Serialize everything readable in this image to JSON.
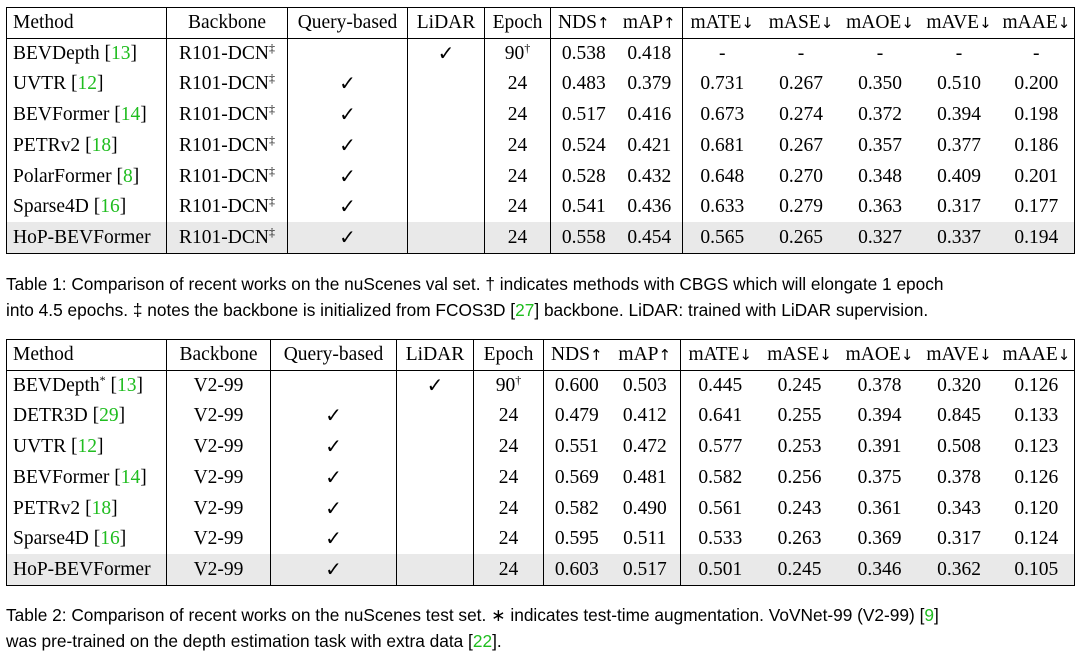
{
  "columns": {
    "method": "Method",
    "backbone": "Backbone",
    "query": "Query-based",
    "lidar": "LiDAR",
    "epoch": "Epoch",
    "nds": "NDS",
    "map": "mAP",
    "mate": "mATE",
    "mase": "mASE",
    "maoe": "mAOE",
    "mave": "mAVE",
    "maae": "mAAE",
    "up_arrow": "↑",
    "down_arrow": "↓"
  },
  "symbols": {
    "check": "✓",
    "dagger": "†",
    "double_dagger": "‡",
    "star": "*",
    "lbr": "[",
    "rbr": "]"
  },
  "table1": {
    "rows": [
      {
        "method": "BEVDepth",
        "ref": "13",
        "backbone": "R101-DCN",
        "query": "",
        "lidar": "✓",
        "epoch": "90",
        "epoch_mark": "†",
        "nds": "0.538",
        "map": "0.418",
        "mate": "-",
        "mase": "-",
        "maoe": "-",
        "mave": "-",
        "maae": "-"
      },
      {
        "method": "UVTR",
        "ref": "12",
        "backbone": "R101-DCN",
        "query": "✓",
        "lidar": "",
        "epoch": "24",
        "nds": "0.483",
        "map": "0.379",
        "mate": "0.731",
        "mase": "0.267",
        "maoe": "0.350",
        "mave": "0.510",
        "maae": "0.200"
      },
      {
        "method": "BEVFormer",
        "ref": "14",
        "backbone": "R101-DCN",
        "query": "✓",
        "lidar": "",
        "epoch": "24",
        "nds": "0.517",
        "map": "0.416",
        "mate": "0.673",
        "mase": "0.274",
        "maoe": "0.372",
        "mave": "0.394",
        "maae": "0.198"
      },
      {
        "method": "PETRv2",
        "ref": "18",
        "backbone": "R101-DCN",
        "query": "✓",
        "lidar": "",
        "epoch": "24",
        "nds": "0.524",
        "map": "0.421",
        "mate": "0.681",
        "mase": "0.267",
        "maoe": "0.357",
        "mave": "0.377",
        "maae": "0.186"
      },
      {
        "method": "PolarFormer",
        "ref": "8",
        "backbone": "R101-DCN",
        "query": "✓",
        "lidar": "",
        "epoch": "24",
        "nds": "0.528",
        "map": "0.432",
        "mate": "0.648",
        "mase": "0.270",
        "maoe": "0.348",
        "mave": "0.409",
        "maae": "0.201"
      },
      {
        "method": "Sparse4D",
        "ref": "16",
        "backbone": "R101-DCN",
        "query": "✓",
        "lidar": "",
        "epoch": "24",
        "nds": "0.541",
        "map": "0.436",
        "mate": "0.633",
        "mase": "0.279",
        "maoe": "0.363",
        "mave": "0.317",
        "maae": "0.177",
        "bold": [
          "mave",
          "maae"
        ]
      },
      {
        "method": "HoP-BEVFormer",
        "ref": "",
        "backbone": "R101-DCN",
        "query": "✓",
        "lidar": "",
        "epoch": "24",
        "nds": "0.558",
        "map": "0.454",
        "mate": "0.565",
        "mase": "0.265",
        "maoe": "0.327",
        "mave": "0.337",
        "maae": "0.194",
        "bold": [
          "nds",
          "map",
          "mate",
          "mase",
          "maoe"
        ],
        "highlight": true
      }
    ],
    "caption": {
      "prefix": "Table 1: Comparison of recent works on the nuScenes val set. † indicates methods with CBGS which will elongate 1 epoch",
      "line2_start": "into 4.5 epochs. ‡ notes the backbone is initialized from FCOS3D [",
      "ref": "27",
      "line2_end": "] backbone. LiDAR: trained with LiDAR supervision."
    }
  },
  "table2": {
    "rows": [
      {
        "method": "BEVDepth",
        "method_mark": "*",
        "ref": "13",
        "backbone": "V2-99",
        "query": "",
        "lidar": "✓",
        "epoch": "90",
        "epoch_mark": "†",
        "nds": "0.600",
        "map": "0.503",
        "mate": "0.445",
        "mase": "0.245",
        "maoe": "0.378",
        "mave": "0.320",
        "maae": "0.126",
        "bold": [
          "mate"
        ]
      },
      {
        "method": "DETR3D",
        "ref": "29",
        "backbone": "V2-99",
        "query": "✓",
        "lidar": "",
        "epoch": "24",
        "nds": "0.479",
        "map": "0.412",
        "mate": "0.641",
        "mase": "0.255",
        "maoe": "0.394",
        "mave": "0.845",
        "maae": "0.133"
      },
      {
        "method": "UVTR",
        "ref": "12",
        "backbone": "V2-99",
        "query": "✓",
        "lidar": "",
        "epoch": "24",
        "nds": "0.551",
        "map": "0.472",
        "mate": "0.577",
        "mase": "0.253",
        "maoe": "0.391",
        "mave": "0.508",
        "maae": "0.123"
      },
      {
        "method": "BEVFormer",
        "ref": "14",
        "backbone": "V2-99",
        "query": "✓",
        "lidar": "",
        "epoch": "24",
        "nds": "0.569",
        "map": "0.481",
        "mate": "0.582",
        "mase": "0.256",
        "maoe": "0.375",
        "mave": "0.378",
        "maae": "0.126"
      },
      {
        "method": "PETRv2",
        "ref": "18",
        "backbone": "V2-99",
        "query": "✓",
        "lidar": "",
        "epoch": "24",
        "nds": "0.582",
        "map": "0.490",
        "mate": "0.561",
        "mase": "0.243",
        "maoe": "0.361",
        "mave": "0.343",
        "maae": "0.120",
        "bold": [
          "mase"
        ]
      },
      {
        "method": "Sparse4D",
        "ref": "16",
        "backbone": "V2-99",
        "query": "✓",
        "lidar": "",
        "epoch": "24",
        "nds": "0.595",
        "map": "0.511",
        "mate": "0.533",
        "mase": "0.263",
        "maoe": "0.369",
        "mave": "0.317",
        "maae": "0.124",
        "bold": [
          "mave"
        ]
      },
      {
        "method": "HoP-BEVFormer",
        "ref": "",
        "backbone": "V2-99",
        "query": "✓",
        "lidar": "",
        "epoch": "24",
        "nds": "0.603",
        "map": "0.517",
        "mate": "0.501",
        "mase": "0.245",
        "maoe": "0.346",
        "mave": "0.362",
        "maae": "0.105",
        "bold": [
          "nds",
          "map",
          "maoe",
          "maae"
        ],
        "highlight": true
      }
    ],
    "caption": {
      "line1_start": "Table 2: Comparison of recent works on the nuScenes test set. ∗ indicates test-time augmentation. VoVNet-99 (V2-99) [",
      "ref1": "9",
      "line1_end": "]",
      "line2_start": "was pre-trained on the depth estimation task with extra data [",
      "ref2": "22",
      "line2_end": "]."
    }
  },
  "colors": {
    "citation": "#1fbd1f",
    "highlight_row": "#e9e9e9"
  }
}
